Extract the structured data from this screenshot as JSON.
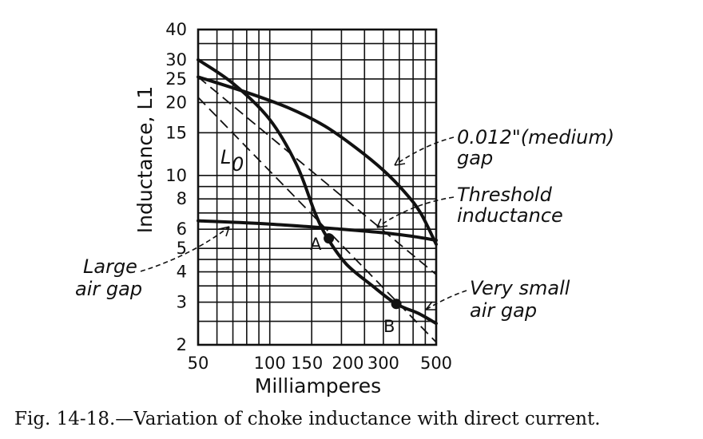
{
  "caption": "Fig. 14-18.—Variation of choke inductance with direct current.",
  "chart_data": {
    "type": "line",
    "xlabel": "Milliamperes",
    "ylabel": "Inductance, L1",
    "xscale": "log",
    "yscale": "log",
    "xlim": [
      50,
      500
    ],
    "ylim": [
      2,
      40
    ],
    "grid": true,
    "x_ticks": [
      {
        "value": 50,
        "label": "50"
      },
      {
        "value": 100,
        "label": "100"
      },
      {
        "value": 150,
        "label": "150"
      },
      {
        "value": 200,
        "label": "200"
      },
      {
        "value": 300,
        "label": "300"
      },
      {
        "value": 500,
        "label": "500"
      }
    ],
    "y_ticks": [
      {
        "value": 2,
        "label": "2"
      },
      {
        "value": 3,
        "label": "3"
      },
      {
        "value": 4,
        "label": "4"
      },
      {
        "value": 5,
        "label": "5"
      },
      {
        "value": 6,
        "label": "6"
      },
      {
        "value": 8,
        "label": "8"
      },
      {
        "value": 10,
        "label": "10"
      },
      {
        "value": 15,
        "label": "15"
      },
      {
        "value": 20,
        "label": "20"
      },
      {
        "value": 25,
        "label": "25"
      },
      {
        "value": 30,
        "label": "30"
      },
      {
        "value": 40,
        "label": "40"
      }
    ],
    "series": [
      {
        "name": "0.012\"(medium) gap",
        "style": "solid",
        "x": [
          50,
          80,
          120,
          170,
          230,
          300,
          370,
          430,
          500
        ],
        "y": [
          25.5,
          22,
          19,
          16,
          13,
          10.5,
          8.5,
          7,
          5.2
        ]
      },
      {
        "name": "Very small air gap",
        "style": "solid",
        "x": [
          50,
          70,
          100,
          130,
          155,
          175,
          210,
          270,
          340,
          420,
          500
        ],
        "y": [
          30,
          24,
          17,
          11,
          7,
          5.5,
          4.3,
          3.5,
          2.95,
          2.7,
          2.45
        ]
      },
      {
        "name": "Large air gap",
        "style": "solid",
        "x": [
          50,
          100,
          200,
          300,
          400,
          500
        ],
        "y": [
          6.5,
          6.3,
          6.0,
          5.8,
          5.6,
          5.4
        ]
      },
      {
        "name": "Threshold inductance",
        "style": "dashed",
        "x": [
          50,
          500
        ],
        "y": [
          25.5,
          3.9
        ]
      },
      {
        "name": "L0",
        "style": "dashed",
        "x": [
          50,
          500
        ],
        "y": [
          21,
          2.05
        ]
      }
    ],
    "points": [
      {
        "label": "A",
        "x": 177,
        "y": 5.5
      },
      {
        "label": "B",
        "x": 340,
        "y": 2.95
      }
    ],
    "annotations": {
      "l0_label": "L",
      "l0_sub": "0",
      "medium_line1": "0.012\"(medium)",
      "medium_line2": "gap",
      "threshold_line1": "Threshold",
      "threshold_line2": "inductance",
      "large_line1": "Large",
      "large_line2": "air gap",
      "small_line1": "Very small",
      "small_line2": "air gap"
    }
  }
}
